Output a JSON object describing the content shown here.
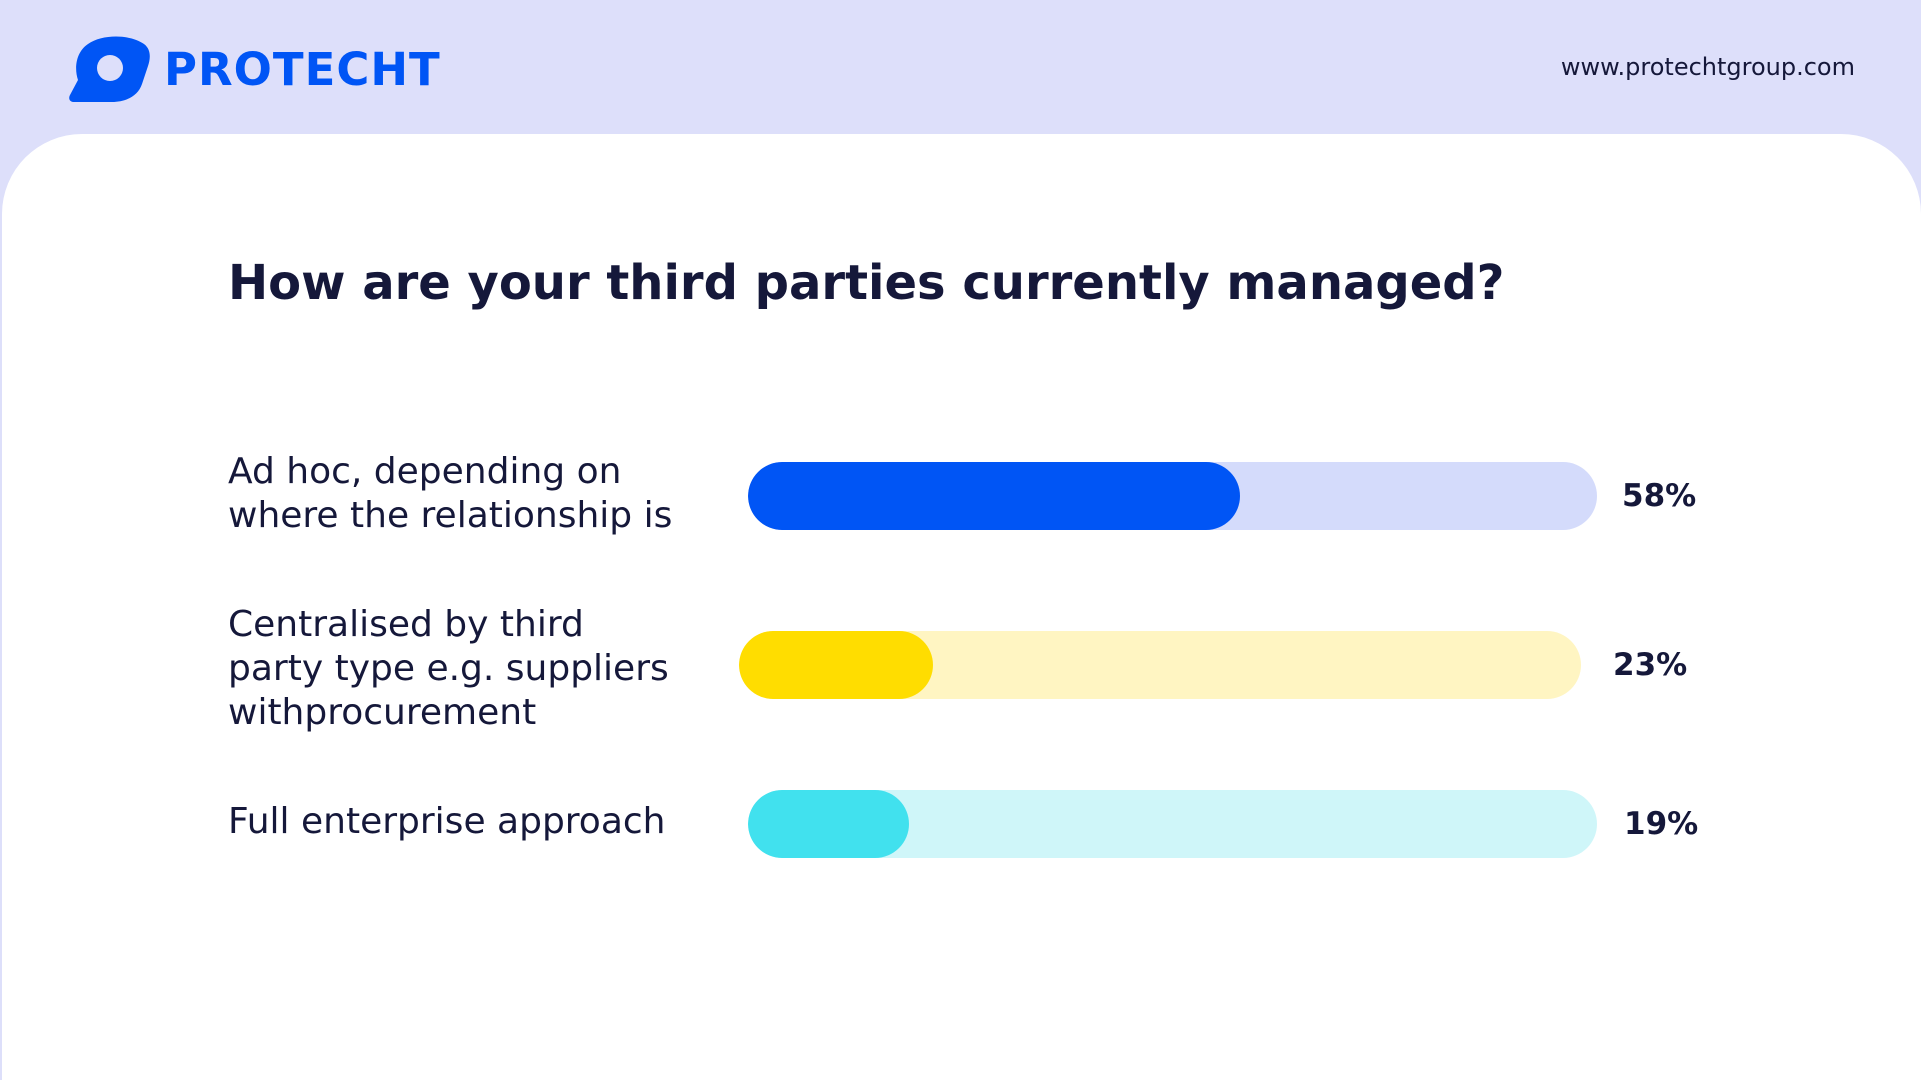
{
  "header": {
    "brand": "PROTECHT",
    "url": "www.protechtgroup.com",
    "logo_icon": "protecht-logo-icon"
  },
  "colors": {
    "brand": "#0055f5",
    "header_bg": "#dddffa",
    "text": "#15183a"
  },
  "chart_data": {
    "type": "bar",
    "orientation": "horizontal",
    "title": "How are your third parties currently managed?",
    "xlabel": "",
    "ylabel": "",
    "xlim": [
      0,
      100
    ],
    "categories": [
      "Ad hoc, depending on where the relationship is",
      "Centralised by third party type e.g. suppliers withprocurement",
      "Full enterprise approach"
    ],
    "category_lines": [
      [
        "Ad hoc, depending on",
        "where the relationship is"
      ],
      [
        "Centralised by third",
        "party type e.g. suppliers",
        "withprocurement"
      ],
      [
        "Full enterprise approach"
      ]
    ],
    "values": [
      58,
      23,
      19
    ],
    "value_labels": [
      "58%",
      "23%",
      "19%"
    ],
    "bar_colors": [
      "#0055f5",
      "#ffdd00",
      "#41e1ee"
    ],
    "track_colors": [
      "#d4dbfb",
      "#fff5c2",
      "#cff6f9"
    ],
    "grid": false,
    "legend": "none"
  }
}
